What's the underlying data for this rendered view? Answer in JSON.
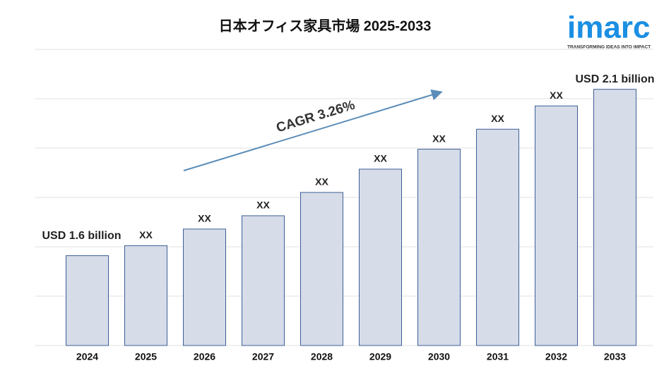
{
  "chart_data": {
    "type": "bar",
    "title": "日本オフィス家具市場 2025-2033",
    "categories": [
      "2024",
      "2025",
      "2026",
      "2027",
      "2028",
      "2029",
      "2030",
      "2031",
      "2032",
      "2033"
    ],
    "values": [
      1.6,
      1.63,
      1.68,
      1.72,
      1.79,
      1.86,
      1.92,
      1.98,
      2.05,
      2.1
    ],
    "value_labels": [
      "USD 1.6 billion",
      "XX",
      "XX",
      "XX",
      "XX",
      "XX",
      "XX",
      "XX",
      "XX",
      "USD 2.1 billion"
    ],
    "color": "#d6dce8",
    "ylim": [
      1.33,
      2.22
    ],
    "annotation": "CAGR 3.26%"
  },
  "brand": {
    "name": "imarc",
    "tagline": "TRANSFORMING IDEAS INTO IMPACT"
  }
}
